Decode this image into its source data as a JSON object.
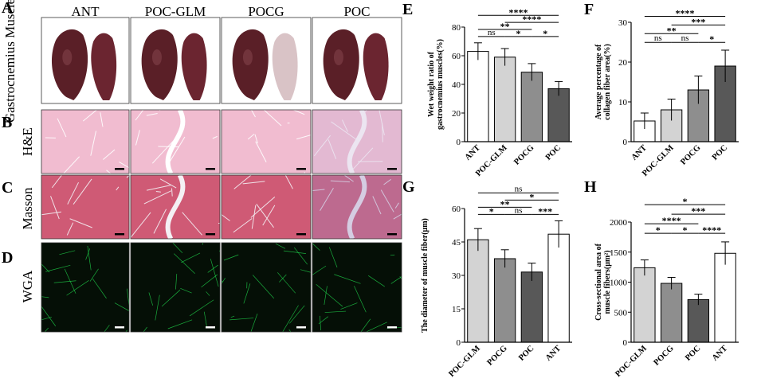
{
  "left": {
    "panel_labels": [
      "A",
      "B",
      "C",
      "D"
    ],
    "row_labels": [
      "Gastrocnemius Muscle",
      "H&E",
      "Masson",
      "WGA"
    ],
    "columns": [
      "ANT",
      "POC-GLM",
      "POCG",
      "POC"
    ],
    "colors": {
      "he_bg": "#f1bcd0",
      "he_line": "#ffffff",
      "masson_bg": "#cf5a75",
      "masson_line": "#f4f0f4",
      "wga_bg": "#050f06",
      "wga_line": "#1fd24a",
      "muscle": "#5a1f27"
    }
  },
  "chart_data": [
    {
      "panel": "E",
      "type": "bar",
      "categories": [
        "ANT",
        "POC-GLM",
        "POCG",
        "POC"
      ],
      "values": [
        63,
        59,
        48.5,
        37
      ],
      "errors": [
        6,
        6,
        6,
        5
      ],
      "colors": [
        "#ffffff",
        "#d3d3d3",
        "#8e8e8e",
        "#585858"
      ],
      "ylabel": "Wet weight ratio of gastrocnemius muscles(%)",
      "ylim": [
        0,
        80
      ],
      "yticks": [
        0,
        20,
        40,
        60,
        80
      ],
      "sig": [
        {
          "a": 0,
          "b": 1,
          "label": "ns"
        },
        {
          "a": 1,
          "b": 2,
          "label": "*"
        },
        {
          "a": 2,
          "b": 3,
          "label": "*"
        },
        {
          "a": 1,
          "b": 3,
          "label": "****"
        },
        {
          "a": 0,
          "b": 2,
          "label": "**"
        },
        {
          "a": 0,
          "b": 3,
          "label": "****"
        }
      ]
    },
    {
      "panel": "F",
      "type": "bar",
      "categories": [
        "ANT",
        "POC-GLM",
        "POCG",
        "POC"
      ],
      "values": [
        5.2,
        8,
        13,
        19
      ],
      "errors": [
        2,
        2.7,
        3.5,
        4
      ],
      "colors": [
        "#ffffff",
        "#d3d3d3",
        "#8e8e8e",
        "#585858"
      ],
      "ylabel": "Average percentage of collagen fiber area(%)",
      "ylim": [
        0,
        30
      ],
      "yticks": [
        0,
        10,
        20,
        30
      ],
      "sig": [
        {
          "a": 0,
          "b": 1,
          "label": "ns"
        },
        {
          "a": 1,
          "b": 2,
          "label": "ns"
        },
        {
          "a": 2,
          "b": 3,
          "label": "*"
        },
        {
          "a": 1,
          "b": 3,
          "label": "***"
        },
        {
          "a": 0,
          "b": 2,
          "label": "**"
        },
        {
          "a": 0,
          "b": 3,
          "label": "****"
        }
      ]
    },
    {
      "panel": "G",
      "type": "bar",
      "categories": [
        "POC-GLM",
        "POCG",
        "POC",
        "ANT"
      ],
      "values": [
        46,
        37.5,
        31.5,
        48.5
      ],
      "errors": [
        5,
        4,
        4,
        6
      ],
      "colors": [
        "#d3d3d3",
        "#8e8e8e",
        "#585858",
        "#ffffff"
      ],
      "ylabel": "The diameter of muscle fiber(μm)",
      "ylim": [
        0,
        60
      ],
      "yticks": [
        0,
        15,
        30,
        45,
        60
      ],
      "sig": [
        {
          "a": 0,
          "b": 1,
          "label": "*"
        },
        {
          "a": 1,
          "b": 2,
          "label": "ns"
        },
        {
          "a": 2,
          "b": 3,
          "label": "***"
        },
        {
          "a": 0,
          "b": 2,
          "label": "**"
        },
        {
          "a": 1,
          "b": 3,
          "label": "*"
        },
        {
          "a": 0,
          "b": 3,
          "label": "ns"
        }
      ]
    },
    {
      "panel": "H",
      "type": "bar",
      "categories": [
        "POC-GLM",
        "POCG",
        "POC",
        "ANT"
      ],
      "values": [
        1240,
        980,
        710,
        1480
      ],
      "errors": [
        130,
        100,
        90,
        190
      ],
      "colors": [
        "#d3d3d3",
        "#8e8e8e",
        "#585858",
        "#ffffff"
      ],
      "ylabel": "Cross-sectional area of muscle fibers(μm²)",
      "ylim": [
        0,
        2000
      ],
      "yticks": [
        0,
        500,
        1000,
        1500,
        2000
      ],
      "sig": [
        {
          "a": 0,
          "b": 1,
          "label": "*"
        },
        {
          "a": 1,
          "b": 2,
          "label": "*"
        },
        {
          "a": 0,
          "b": 2,
          "label": "****"
        },
        {
          "a": 2,
          "b": 3,
          "label": "****"
        },
        {
          "a": 1,
          "b": 3,
          "label": "***"
        },
        {
          "a": 0,
          "b": 3,
          "label": "*"
        }
      ]
    }
  ]
}
